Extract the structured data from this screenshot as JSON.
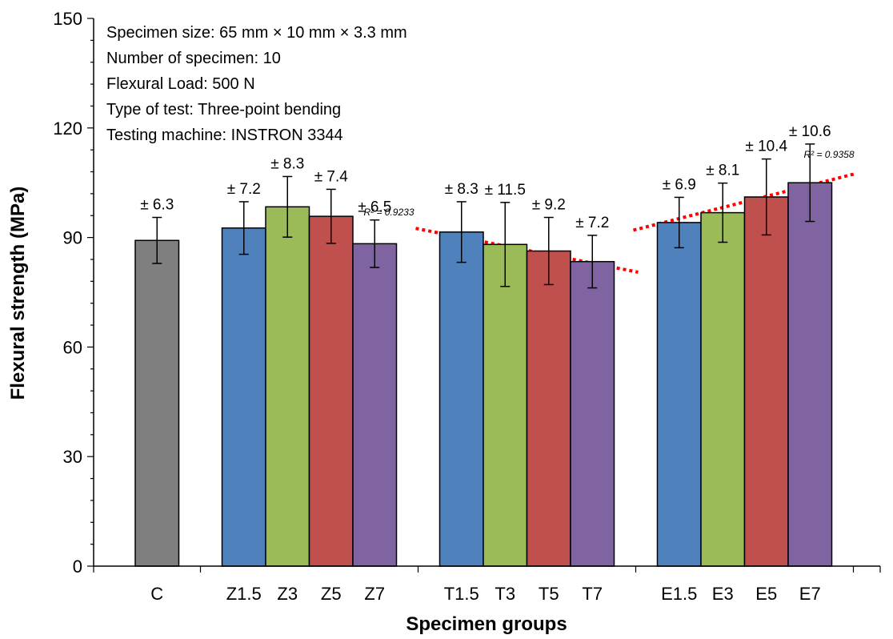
{
  "chart_data": {
    "type": "bar",
    "ylabel": "Flexural strength (MPa)",
    "xlabel": "Specimen groups",
    "ylim": [
      0,
      150
    ],
    "yticks": [
      0,
      30,
      60,
      90,
      120,
      150
    ],
    "grid": false,
    "notes": [
      "Specimen size: 65 mm × 10 mm × 3.3 mm",
      "Number of specimen: 10",
      "Flexural Load: 500 N",
      "Type of test: Three-point bending",
      "Testing machine: INSTRON 3344"
    ],
    "groups": [
      {
        "bars": [
          {
            "label": "C",
            "value": 89.2,
            "error": 6.3,
            "error_label": "± 6.3",
            "color": "#7f7f7f"
          }
        ]
      },
      {
        "bars": [
          {
            "label": "Z1.5",
            "value": 92.6,
            "error": 7.2,
            "error_label": "± 7.2",
            "color": "#4f81bd"
          },
          {
            "label": "Z3",
            "value": 98.4,
            "error": 8.3,
            "error_label": "± 8.3",
            "color": "#9bbb59"
          },
          {
            "label": "Z5",
            "value": 95.8,
            "error": 7.4,
            "error_label": "± 7.4",
            "color": "#c0504d"
          },
          {
            "label": "Z7",
            "value": 88.3,
            "error": 6.5,
            "error_label": "± 6.5",
            "color": "#8064a2"
          }
        ]
      },
      {
        "bars": [
          {
            "label": "T1.5",
            "value": 91.5,
            "error": 8.3,
            "error_label": "± 8.3",
            "color": "#4f81bd"
          },
          {
            "label": "T3",
            "value": 88.1,
            "error": 11.5,
            "error_label": "± 11.5",
            "color": "#9bbb59"
          },
          {
            "label": "T5",
            "value": 86.3,
            "error": 9.2,
            "error_label": "± 9.2",
            "color": "#c0504d"
          },
          {
            "label": "T7",
            "value": 83.4,
            "error": 7.2,
            "error_label": "± 7.2",
            "color": "#8064a2"
          }
        ],
        "trendline": {
          "r2_label": "R² = 0.9233",
          "start": 92.5,
          "end": 80.5
        }
      },
      {
        "bars": [
          {
            "label": "E1.5",
            "value": 94.1,
            "error": 6.9,
            "error_label": "± 6.9",
            "color": "#4f81bd"
          },
          {
            "label": "E3",
            "value": 96.8,
            "error": 8.1,
            "error_label": "± 8.1",
            "color": "#9bbb59"
          },
          {
            "label": "E5",
            "value": 101.1,
            "error": 10.4,
            "error_label": "± 10.4",
            "color": "#c0504d"
          },
          {
            "label": "E7",
            "value": 105.0,
            "error": 10.6,
            "error_label": "± 10.6",
            "color": "#8064a2"
          }
        ],
        "trendline": {
          "r2_label": "R² = 0.9358",
          "start": 92.0,
          "end": 107.5
        }
      }
    ],
    "trendline_color": "#ff0000"
  }
}
